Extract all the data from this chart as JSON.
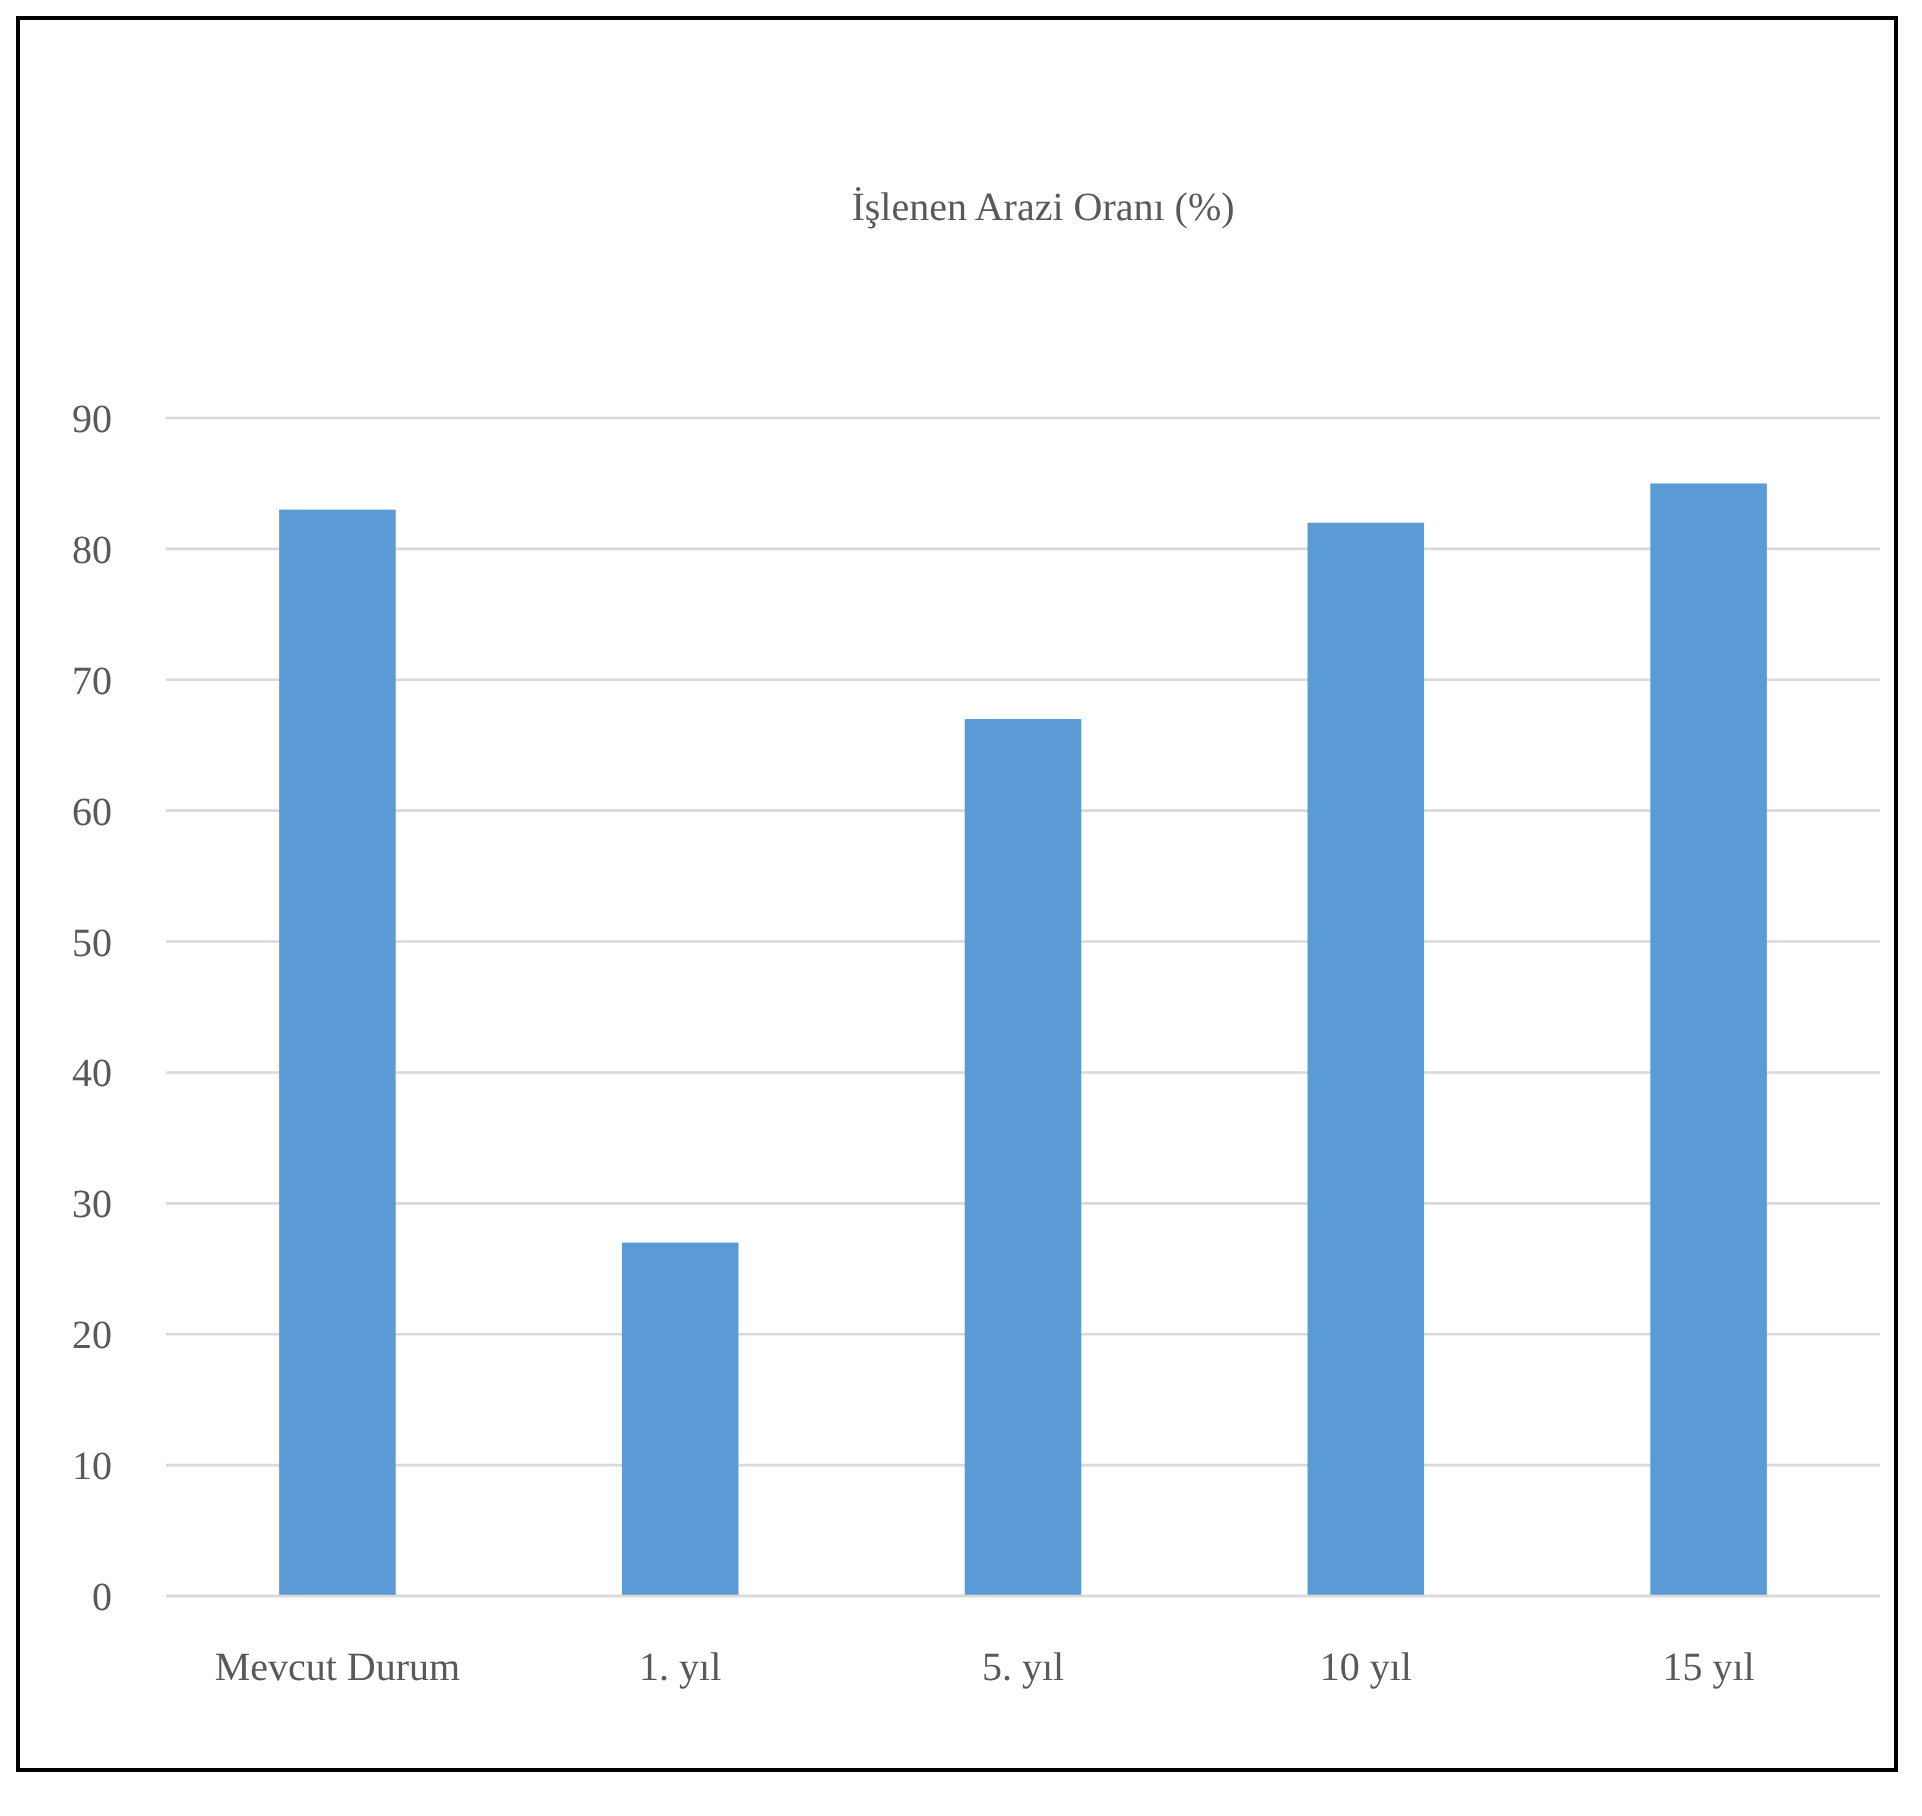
{
  "chart_data": {
    "type": "bar",
    "title": "İşlenen Arazi Oranı (%)",
    "categories": [
      "Mevcut Durum",
      "1. yıl",
      "5. yıl",
      "10 yıl",
      "15 yıl"
    ],
    "values": [
      83,
      27,
      67,
      82,
      85
    ],
    "color": "#5b9bd5",
    "ylim": [
      0,
      90
    ],
    "yticks": [
      0,
      10,
      20,
      30,
      40,
      50,
      60,
      70,
      80,
      90
    ],
    "grid": "y"
  }
}
